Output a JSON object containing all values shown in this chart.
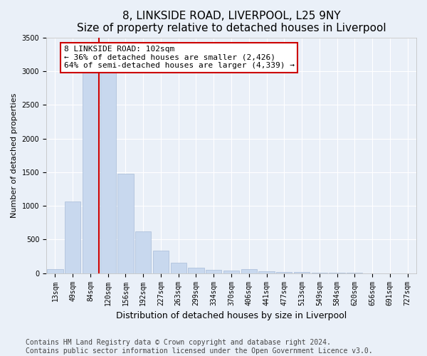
{
  "title": "8, LINKSIDE ROAD, LIVERPOOL, L25 9NY",
  "subtitle": "Size of property relative to detached houses in Liverpool",
  "xlabel": "Distribution of detached houses by size in Liverpool",
  "ylabel": "Number of detached properties",
  "categories": [
    "13sqm",
    "49sqm",
    "84sqm",
    "120sqm",
    "156sqm",
    "192sqm",
    "227sqm",
    "263sqm",
    "299sqm",
    "334sqm",
    "370sqm",
    "406sqm",
    "441sqm",
    "477sqm",
    "513sqm",
    "549sqm",
    "584sqm",
    "620sqm",
    "656sqm",
    "691sqm",
    "727sqm"
  ],
  "values": [
    60,
    1060,
    3020,
    3020,
    1480,
    620,
    330,
    160,
    80,
    50,
    35,
    55,
    25,
    20,
    15,
    10,
    5,
    3,
    2,
    1,
    1
  ],
  "bar_color": "#c8d8ee",
  "bar_edgecolor": "#a8bcd8",
  "vline_color": "#cc0000",
  "vline_x_index": 2,
  "annotation_text": "8 LINKSIDE ROAD: 102sqm\n← 36% of detached houses are smaller (2,426)\n64% of semi-detached houses are larger (4,339) →",
  "annotation_box_color": "#ffffff",
  "annotation_box_edgecolor": "#cc0000",
  "ylim": [
    0,
    3500
  ],
  "yticks": [
    0,
    500,
    1000,
    1500,
    2000,
    2500,
    3000,
    3500
  ],
  "background_color": "#eaf0f8",
  "plot_bg_color": "#eaf0f8",
  "footer_line1": "Contains HM Land Registry data © Crown copyright and database right 2024.",
  "footer_line2": "Contains public sector information licensed under the Open Government Licence v3.0.",
  "title_fontsize": 11,
  "xlabel_fontsize": 9,
  "ylabel_fontsize": 8,
  "tick_fontsize": 7,
  "footer_fontsize": 7,
  "annotation_fontsize": 8
}
